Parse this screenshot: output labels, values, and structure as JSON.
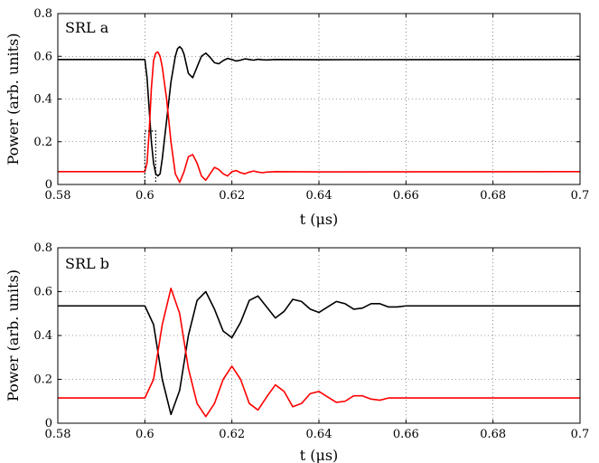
{
  "chart_data": [
    {
      "type": "line",
      "panel_label": "SRL a",
      "xlabel": "t (μs)",
      "ylabel": "Power (arb. units)",
      "xlim": [
        0.58,
        0.7
      ],
      "ylim": [
        0,
        0.8
      ],
      "xticks": [
        "0.58",
        "0.6",
        "0.62",
        "0.64",
        "0.66",
        "0.68",
        "0.7"
      ],
      "yticks": [
        "0",
        "0.2",
        "0.4",
        "0.6",
        "0.8"
      ],
      "grid": true,
      "series": [
        {
          "color": "#000000",
          "x": [
            0.58,
            0.6,
            0.6005,
            0.601,
            0.6015,
            0.602,
            0.6025,
            0.603,
            0.6035,
            0.604,
            0.605,
            0.606,
            0.607,
            0.6075,
            0.608,
            0.6085,
            0.609,
            0.61,
            0.611,
            0.612,
            0.613,
            0.614,
            0.615,
            0.616,
            0.617,
            0.618,
            0.619,
            0.62,
            0.621,
            0.622,
            0.623,
            0.624,
            0.625,
            0.626,
            0.627,
            0.628,
            0.63,
            0.64,
            0.7
          ],
          "y": [
            0.585,
            0.585,
            0.5,
            0.35,
            0.2,
            0.1,
            0.05,
            0.04,
            0.05,
            0.12,
            0.3,
            0.48,
            0.6,
            0.635,
            0.645,
            0.635,
            0.61,
            0.52,
            0.5,
            0.55,
            0.6,
            0.615,
            0.595,
            0.57,
            0.565,
            0.58,
            0.59,
            0.585,
            0.578,
            0.582,
            0.588,
            0.585,
            0.582,
            0.586,
            0.584,
            0.583,
            0.585,
            0.584,
            0.585
          ]
        },
        {
          "color": "#ff0000",
          "x": [
            0.58,
            0.6,
            0.6005,
            0.601,
            0.6015,
            0.602,
            0.6025,
            0.603,
            0.6035,
            0.604,
            0.605,
            0.606,
            0.607,
            0.608,
            0.609,
            0.61,
            0.611,
            0.612,
            0.613,
            0.614,
            0.615,
            0.616,
            0.617,
            0.618,
            0.619,
            0.62,
            0.621,
            0.622,
            0.623,
            0.624,
            0.625,
            0.626,
            0.627,
            0.628,
            0.63,
            0.64,
            0.7
          ],
          "y": [
            0.06,
            0.06,
            0.1,
            0.25,
            0.45,
            0.58,
            0.615,
            0.62,
            0.6,
            0.55,
            0.4,
            0.2,
            0.05,
            0.01,
            0.06,
            0.13,
            0.14,
            0.1,
            0.04,
            0.02,
            0.05,
            0.08,
            0.07,
            0.05,
            0.04,
            0.06,
            0.065,
            0.055,
            0.05,
            0.058,
            0.063,
            0.058,
            0.055,
            0.058,
            0.06,
            0.059,
            0.06
          ]
        }
      ],
      "marker_box": {
        "x": [
          0.6,
          0.6025
        ],
        "y": [
          0,
          0.25
        ]
      }
    },
    {
      "type": "line",
      "panel_label": "SRL b",
      "xlabel": "t (μs)",
      "ylabel": "Power (arb. units)",
      "xlim": [
        0.58,
        0.7
      ],
      "ylim": [
        0,
        0.8
      ],
      "xticks": [
        "0.58",
        "0.6",
        "0.62",
        "0.64",
        "0.66",
        "0.68",
        "0.7"
      ],
      "yticks": [
        "0",
        "0.2",
        "0.4",
        "0.6",
        "0.8"
      ],
      "grid": true,
      "series": [
        {
          "color": "#000000",
          "x": [
            0.58,
            0.6,
            0.602,
            0.604,
            0.606,
            0.608,
            0.61,
            0.612,
            0.614,
            0.616,
            0.618,
            0.62,
            0.622,
            0.624,
            0.626,
            0.628,
            0.63,
            0.632,
            0.634,
            0.636,
            0.638,
            0.64,
            0.642,
            0.644,
            0.646,
            0.648,
            0.65,
            0.652,
            0.654,
            0.656,
            0.658,
            0.66,
            0.665,
            0.67,
            0.7
          ],
          "y": [
            0.535,
            0.535,
            0.45,
            0.2,
            0.04,
            0.15,
            0.4,
            0.56,
            0.6,
            0.52,
            0.42,
            0.39,
            0.46,
            0.56,
            0.58,
            0.53,
            0.48,
            0.51,
            0.565,
            0.555,
            0.52,
            0.505,
            0.53,
            0.555,
            0.545,
            0.52,
            0.525,
            0.545,
            0.545,
            0.53,
            0.53,
            0.535,
            0.535,
            0.535,
            0.535
          ]
        },
        {
          "color": "#ff0000",
          "x": [
            0.58,
            0.6,
            0.602,
            0.604,
            0.606,
            0.608,
            0.61,
            0.612,
            0.614,
            0.616,
            0.618,
            0.62,
            0.622,
            0.624,
            0.626,
            0.628,
            0.63,
            0.632,
            0.634,
            0.636,
            0.638,
            0.64,
            0.642,
            0.644,
            0.646,
            0.648,
            0.65,
            0.652,
            0.654,
            0.656,
            0.658,
            0.66,
            0.665,
            0.67,
            0.7
          ],
          "y": [
            0.115,
            0.115,
            0.2,
            0.45,
            0.615,
            0.5,
            0.25,
            0.09,
            0.03,
            0.09,
            0.2,
            0.26,
            0.2,
            0.09,
            0.06,
            0.12,
            0.175,
            0.145,
            0.075,
            0.09,
            0.135,
            0.145,
            0.12,
            0.095,
            0.1,
            0.125,
            0.125,
            0.11,
            0.105,
            0.115,
            0.115,
            0.115,
            0.115,
            0.115,
            0.115
          ]
        }
      ]
    }
  ]
}
